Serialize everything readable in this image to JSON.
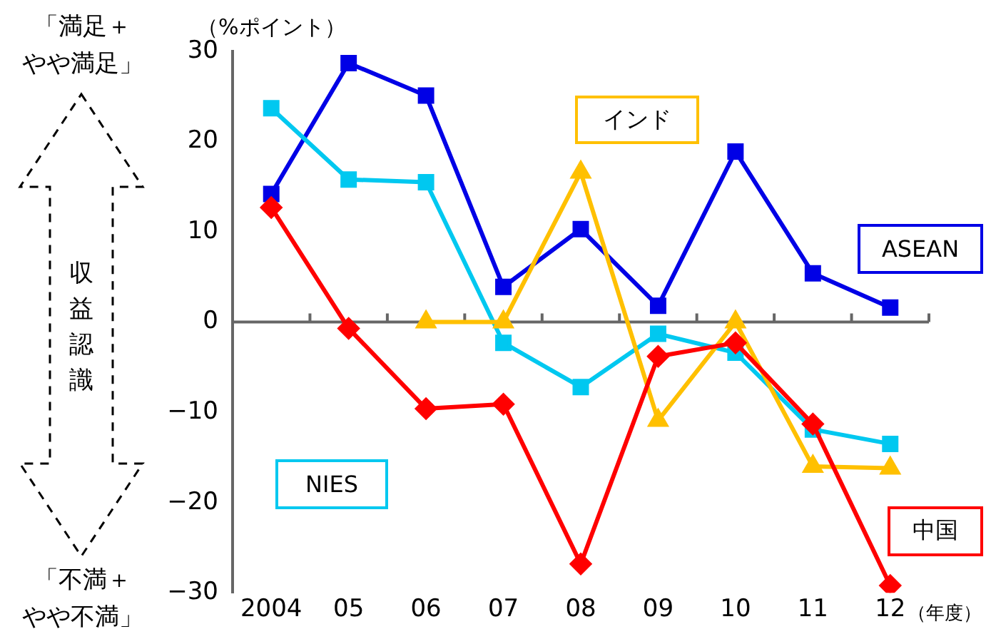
{
  "chart_data": {
    "type": "line",
    "ylabel": "（%ポイント）",
    "xlabel": "（年度）",
    "categories": [
      "2004",
      "05",
      "06",
      "07",
      "08",
      "09",
      "10",
      "11",
      "12"
    ],
    "series": [
      {
        "name": "ASEAN",
        "color": "#0000e6",
        "marker": "square",
        "values": [
          14.2,
          28.7,
          25.1,
          3.9,
          10.3,
          1.8,
          18.9,
          5.4,
          1.6
        ]
      },
      {
        "name": "NIES",
        "color": "#00c8f0",
        "marker": "square",
        "values": [
          23.7,
          15.8,
          15.5,
          -2.3,
          -7.2,
          -1.3,
          -3.4,
          -11.9,
          -13.5
        ]
      },
      {
        "name": "インド",
        "color": "#ffc000",
        "marker": "triangle",
        "values": [
          null,
          null,
          0,
          0,
          16.6,
          -10.9,
          0,
          -16,
          -16.2
        ]
      },
      {
        "name": "中国",
        "color": "#ff0000",
        "marker": "diamond",
        "values": [
          12.7,
          -0.7,
          -9.6,
          -9.1,
          -26.8,
          -3.8,
          -2.3,
          -11.3,
          -29.2
        ]
      }
    ],
    "ylim": [
      -30,
      30
    ],
    "yticks": [
      -30,
      -20,
      -10,
      0,
      10,
      20,
      30
    ],
    "grid": false,
    "legend": false,
    "ref_lines": [
      {
        "axis": "y",
        "value": 0,
        "color": "#666666"
      }
    ],
    "annotations": [
      "「満足＋やや満足」",
      "収益認識",
      "「不満＋やや不満」"
    ]
  }
}
